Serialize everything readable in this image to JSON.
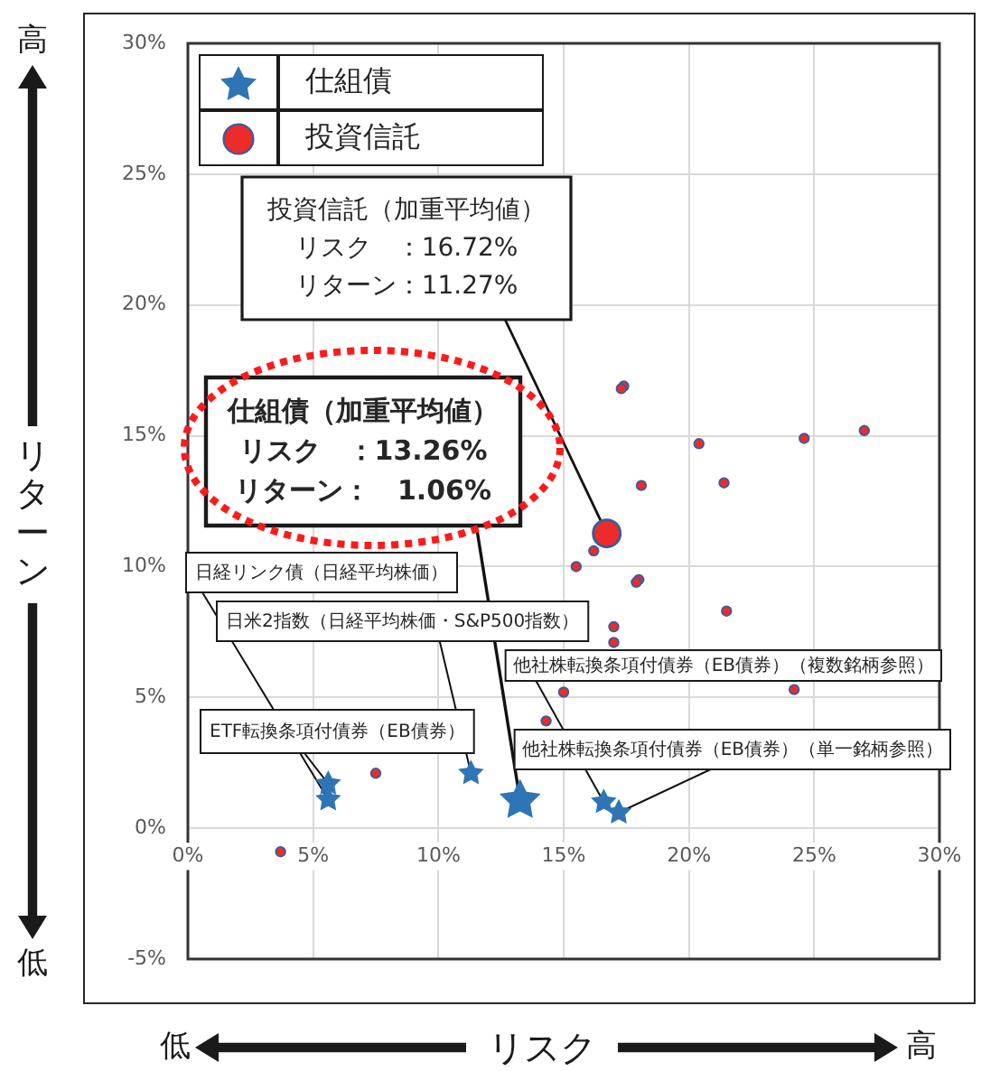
{
  "chart_data": {
    "type": "scatter",
    "xlabel": "リスク",
    "ylabel": "リターン",
    "xlim": [
      0,
      30
    ],
    "xticks": [
      {
        "value": 0,
        "label": "0%"
      },
      {
        "value": 5,
        "label": "5%"
      },
      {
        "value": 10,
        "label": "10%"
      },
      {
        "value": 15,
        "label": "15%"
      },
      {
        "value": 20,
        "label": "20%"
      },
      {
        "value": 25,
        "label": "25%"
      },
      {
        "value": 30,
        "label": "30%"
      }
    ],
    "ylim": [
      -5,
      30
    ],
    "yticks": [
      {
        "value": -5,
        "label": "-5%"
      },
      {
        "value": 0,
        "label": "0%"
      },
      {
        "value": 5,
        "label": "5%"
      },
      {
        "value": 10,
        "label": "10%"
      },
      {
        "value": 15,
        "label": "15%"
      },
      {
        "value": 20,
        "label": "20%"
      },
      {
        "value": 25,
        "label": "25%"
      },
      {
        "value": 30,
        "label": "30%"
      }
    ],
    "grid": true,
    "legend": "top left",
    "series": [
      {
        "name": "仕組債",
        "color": "#2e75b6",
        "marker": "star",
        "x": [
          5.6,
          5.6,
          11.3,
          16.6,
          17.2
        ],
        "values": [
          1.7,
          1.1,
          2.1,
          1.0,
          0.6
        ]
      },
      {
        "name": "投資信託",
        "color": "#ee2b2b",
        "marker": "circle",
        "x": [
          17.4,
          17.3,
          20.4,
          24.6,
          27.0,
          18.1,
          21.4,
          16.2,
          15.5,
          18.0,
          17.9,
          21.5,
          17.0,
          17.0,
          15.0,
          24.2,
          14.3,
          7.5,
          3.7
        ],
        "values": [
          16.9,
          16.8,
          14.7,
          14.9,
          15.2,
          13.1,
          13.2,
          10.6,
          10.0,
          9.5,
          9.4,
          8.3,
          7.7,
          7.1,
          5.2,
          5.3,
          4.1,
          2.1,
          -0.9
        ]
      },
      {
        "color": "#2e75b6",
        "marker": "star",
        "x": [
          13.26
        ],
        "values": [
          1.06
        ]
      },
      {
        "color": "#ee2b2b",
        "marker": "circle",
        "x": [
          16.72
        ],
        "values": [
          11.27
        ]
      }
    ],
    "annotations": [
      "投資信託（加重平均値）",
      "リスク　：16.72%",
      {
        "text": "リターン：11.27%",
        "x": 16.72,
        "y": 11.27
      },
      "仕組債（加重平均値）",
      "リスク　：13.26%",
      {
        "text": "リターン：　1.06%",
        "x": 13.26,
        "y": 1.06
      },
      {
        "text": "日経リンク債（日経平均株価）",
        "x": 5.6,
        "y": 1.1
      },
      {
        "text": "日米2指数（日経平均株価・S&P500指数）",
        "x": 11.3,
        "y": 2.1
      },
      {
        "text": "ETF転換条項付債券（EB債券）",
        "x": 5.6,
        "y": 1.7
      },
      {
        "text": "他社株転換条項付債券（EB債券）（複数銘柄参照）",
        "x": 16.6,
        "y": 1.0
      },
      {
        "text": "他社株転換条項付債券（EB債券）（単一銘柄参照）",
        "x": 17.2,
        "y": 0.6
      },
      "高",
      "低",
      "低",
      "高"
    ]
  }
}
